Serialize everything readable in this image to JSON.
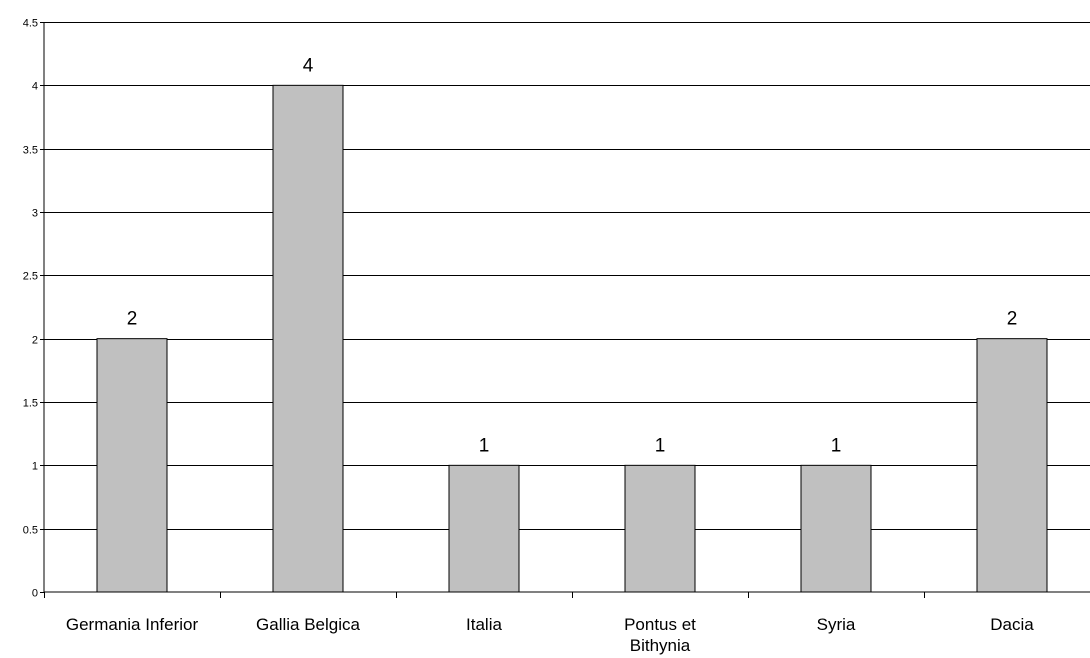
{
  "chart_data": {
    "type": "bar",
    "categories": [
      [
        "Germania Inferior"
      ],
      [
        "Gallia Belgica"
      ],
      [
        "Italia"
      ],
      [
        "Pontus et",
        "Bithynia"
      ],
      [
        "Syria"
      ],
      [
        "Dacia"
      ]
    ],
    "values": [
      2,
      4,
      1,
      1,
      1,
      2
    ],
    "data_labels": [
      "2",
      "4",
      "1",
      "1",
      "1",
      "2"
    ],
    "ylim": [
      0,
      4.5
    ],
    "yticks": [
      0,
      0.5,
      1,
      1.5,
      2,
      2.5,
      3,
      3.5,
      4,
      4.5
    ],
    "ytick_labels": [
      "0",
      "0.5",
      "1",
      "1.5",
      "2",
      "2.5",
      "3",
      "3.5",
      "4",
      "4.5"
    ],
    "grid": true,
    "legend": false,
    "bar_color": "#c0c0c0",
    "bar_edge_color": "#000000",
    "grid_color": "#000000"
  }
}
